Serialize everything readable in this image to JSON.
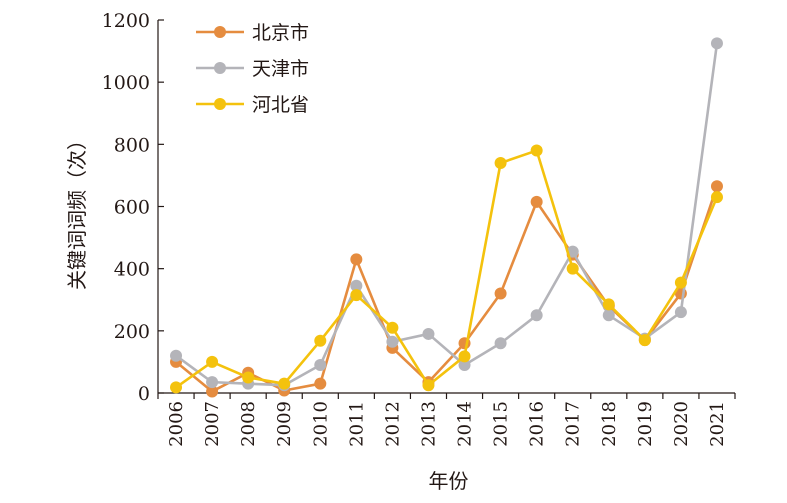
{
  "chart_data": {
    "type": "line",
    "xlabel": "年份",
    "ylabel": "关键词词频（次）",
    "x": [
      "2006",
      "2007",
      "2008",
      "2009",
      "2010",
      "2011",
      "2012",
      "2013",
      "2014",
      "2015",
      "2016",
      "2017",
      "2018",
      "2019",
      "2020",
      "2021"
    ],
    "ylim": [
      0,
      1200
    ],
    "yticks": [
      "0",
      "200",
      "400",
      "600",
      "800",
      "1000",
      "1200"
    ],
    "grid": false,
    "legend_position": "top-left",
    "series": [
      {
        "name": "北京市",
        "color": "#e58c3f",
        "values": [
          100,
          5,
          65,
          8,
          30,
          430,
          145,
          35,
          160,
          320,
          615,
          445,
          280,
          170,
          320,
          665
        ]
      },
      {
        "name": "天津市",
        "color": "#b4b4b9",
        "values": [
          120,
          35,
          30,
          25,
          90,
          345,
          165,
          190,
          90,
          160,
          250,
          455,
          250,
          175,
          260,
          1125
        ]
      },
      {
        "name": "河北省",
        "color": "#f4c20d",
        "values": [
          18,
          100,
          50,
          30,
          168,
          315,
          210,
          25,
          118,
          740,
          780,
          400,
          285,
          170,
          355,
          630
        ]
      }
    ]
  }
}
